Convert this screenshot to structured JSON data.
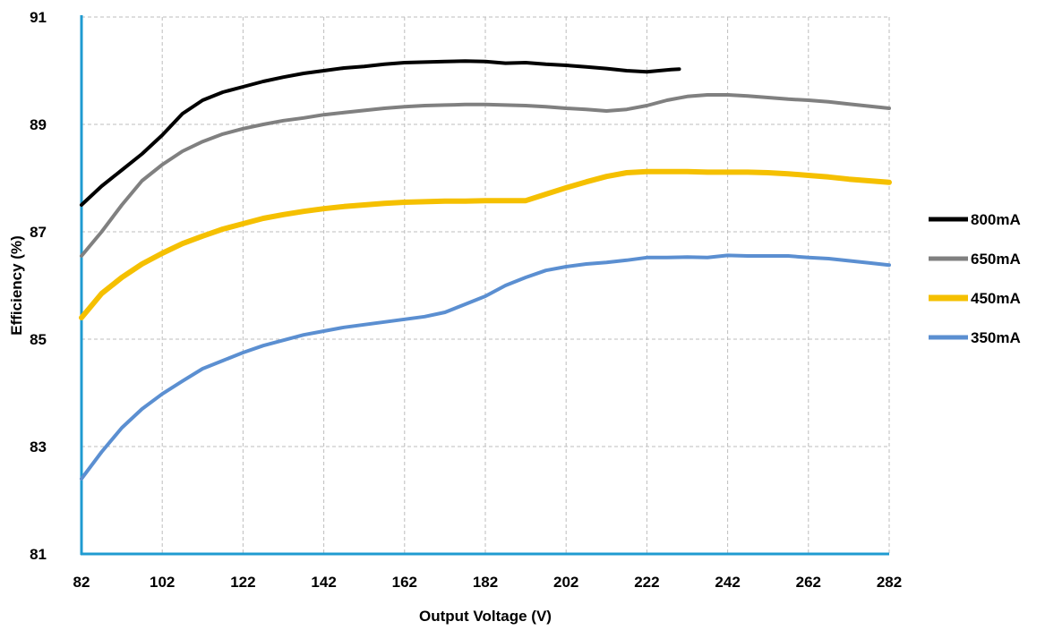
{
  "chart_data": {
    "type": "line",
    "title": "",
    "xlabel": "Output Voltage (V)",
    "ylabel": "Efficiency (%)",
    "xlim": [
      82,
      282
    ],
    "ylim": [
      81,
      91
    ],
    "x_ticks": [
      82,
      102,
      122,
      142,
      162,
      182,
      202,
      222,
      242,
      262,
      282
    ],
    "y_ticks": [
      81,
      83,
      85,
      87,
      89,
      91
    ],
    "grid": true,
    "legend_position": "right",
    "series": [
      {
        "name": "800mA",
        "color": "#000000",
        "x": [
          82,
          87,
          92,
          97,
          102,
          107,
          112,
          117,
          122,
          127,
          132,
          137,
          142,
          147,
          152,
          157,
          162,
          167,
          172,
          177,
          182,
          187,
          192,
          197,
          202,
          207,
          212,
          217,
          222,
          225,
          228,
          230
        ],
        "y": [
          87.5,
          87.85,
          88.15,
          88.45,
          88.8,
          89.2,
          89.45,
          89.6,
          89.7,
          89.8,
          89.88,
          89.95,
          90.0,
          90.05,
          90.08,
          90.12,
          90.15,
          90.16,
          90.17,
          90.18,
          90.17,
          90.14,
          90.15,
          90.12,
          90.1,
          90.07,
          90.04,
          90.0,
          89.98,
          90.0,
          90.02,
          90.03
        ]
      },
      {
        "name": "650mA",
        "color": "#808080",
        "x": [
          82,
          87,
          92,
          97,
          102,
          107,
          112,
          117,
          122,
          127,
          132,
          137,
          142,
          147,
          152,
          157,
          162,
          167,
          172,
          177,
          182,
          187,
          192,
          197,
          202,
          207,
          212,
          217,
          222,
          227,
          232,
          237,
          242,
          247,
          252,
          257,
          262,
          267,
          272,
          277,
          282
        ],
        "y": [
          86.55,
          87.0,
          87.5,
          87.95,
          88.25,
          88.5,
          88.68,
          88.82,
          88.92,
          89.0,
          89.07,
          89.12,
          89.18,
          89.22,
          89.26,
          89.3,
          89.33,
          89.35,
          89.36,
          89.37,
          89.37,
          89.36,
          89.35,
          89.33,
          89.3,
          89.28,
          89.25,
          89.28,
          89.35,
          89.45,
          89.52,
          89.55,
          89.55,
          89.53,
          89.5,
          89.47,
          89.45,
          89.42,
          89.38,
          89.34,
          89.3
        ]
      },
      {
        "name": "450mA",
        "color": "#f5c000",
        "x": [
          82,
          87,
          92,
          97,
          102,
          107,
          112,
          117,
          122,
          127,
          132,
          137,
          142,
          147,
          152,
          157,
          162,
          167,
          172,
          177,
          182,
          187,
          192,
          197,
          202,
          207,
          212,
          217,
          222,
          227,
          232,
          237,
          242,
          247,
          252,
          257,
          262,
          267,
          272,
          277,
          282
        ],
        "y": [
          85.4,
          85.85,
          86.15,
          86.4,
          86.6,
          86.78,
          86.92,
          87.05,
          87.15,
          87.25,
          87.32,
          87.38,
          87.43,
          87.47,
          87.5,
          87.53,
          87.55,
          87.56,
          87.57,
          87.57,
          87.58,
          87.58,
          87.58,
          87.7,
          87.82,
          87.93,
          88.03,
          88.1,
          88.12,
          88.12,
          88.12,
          88.11,
          88.11,
          88.11,
          88.1,
          88.08,
          88.05,
          88.02,
          87.98,
          87.95,
          87.92
        ]
      },
      {
        "name": "350mA",
        "color": "#5b8fd1",
        "x": [
          82,
          87,
          92,
          97,
          102,
          107,
          112,
          117,
          122,
          127,
          132,
          137,
          142,
          147,
          152,
          157,
          162,
          167,
          172,
          177,
          182,
          187,
          192,
          197,
          202,
          207,
          212,
          217,
          222,
          227,
          232,
          237,
          242,
          247,
          252,
          257,
          262,
          267,
          272,
          277,
          282
        ],
        "y": [
          82.4,
          82.9,
          83.35,
          83.7,
          83.98,
          84.22,
          84.45,
          84.6,
          84.75,
          84.88,
          84.98,
          85.08,
          85.15,
          85.22,
          85.27,
          85.32,
          85.37,
          85.42,
          85.5,
          85.65,
          85.8,
          86.0,
          86.15,
          86.28,
          86.35,
          86.4,
          86.43,
          86.47,
          86.52,
          86.52,
          86.53,
          86.52,
          86.56,
          86.55,
          86.55,
          86.55,
          86.52,
          86.5,
          86.46,
          86.42,
          86.38
        ]
      }
    ]
  }
}
